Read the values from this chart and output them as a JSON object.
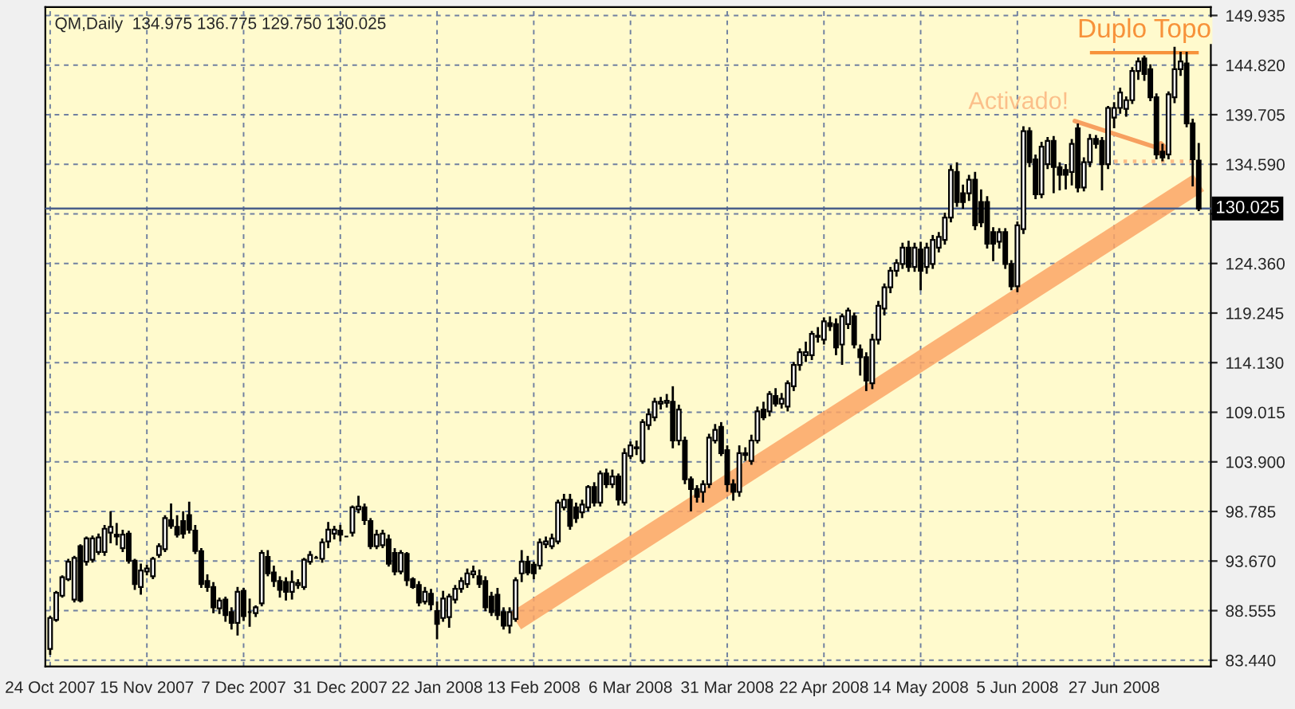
{
  "chart_data": {
    "type": "candlestick",
    "title": "QM,Daily  134.975 136.775 129.750 130.025",
    "categories": [
      "24 Oct 2007",
      null,
      null,
      null,
      null,
      null,
      null,
      null,
      null,
      null,
      null,
      null,
      null,
      null,
      null,
      null,
      "15 Nov 2007",
      null,
      null,
      null,
      null,
      null,
      null,
      null,
      null,
      null,
      null,
      null,
      null,
      null,
      null,
      null,
      "7 Dec 2007",
      null,
      null,
      null,
      null,
      null,
      null,
      null,
      null,
      null,
      null,
      null,
      null,
      null,
      null,
      null,
      "31 Dec 2007",
      null,
      null,
      null,
      null,
      null,
      null,
      null,
      null,
      null,
      null,
      null,
      null,
      null,
      null,
      null,
      "22 Jan 2008",
      null,
      null,
      null,
      null,
      null,
      null,
      null,
      null,
      null,
      null,
      null,
      null,
      null,
      null,
      null,
      "13 Feb 2008",
      null,
      null,
      null,
      null,
      null,
      null,
      null,
      null,
      null,
      null,
      null,
      null,
      null,
      null,
      null,
      "6 Mar 2008",
      null,
      null,
      null,
      null,
      null,
      null,
      null,
      null,
      null,
      null,
      null,
      null,
      null,
      null,
      null,
      "31 Mar 2008",
      null,
      null,
      null,
      null,
      null,
      null,
      null,
      null,
      null,
      null,
      null,
      null,
      null,
      null,
      null,
      "22 Apr 2008",
      null,
      null,
      null,
      null,
      null,
      null,
      null,
      null,
      null,
      null,
      null,
      null,
      null,
      null,
      null,
      "14 May 2008",
      null,
      null,
      null,
      null,
      null,
      null,
      null,
      null,
      null,
      null,
      null,
      null,
      null,
      null,
      null,
      "5 Jun 2008",
      null,
      null,
      null,
      null,
      null,
      null,
      null,
      null,
      null,
      null,
      null,
      null,
      null,
      null,
      null,
      "27 Jun 2008",
      null,
      null,
      null,
      null,
      null,
      null,
      null,
      null,
      null,
      null,
      null,
      null,
      null,
      null
    ],
    "ohlc": [
      [
        84.6,
        88.0,
        84.0,
        87.8
      ],
      [
        87.6,
        90.6,
        87.4,
        90.4
      ],
      [
        90.1,
        92.2,
        89.9,
        92.0
      ],
      [
        91.8,
        93.9,
        91.6,
        93.6
      ],
      [
        89.7,
        94.2,
        89.4,
        94.0
      ],
      [
        95.2,
        95.4,
        89.4,
        89.6
      ],
      [
        93.6,
        96.2,
        93.2,
        96.0
      ],
      [
        93.8,
        96.3,
        93.5,
        96.0
      ],
      [
        94.6,
        96.5,
        94.3,
        96.1
      ],
      [
        94.6,
        97.4,
        94.2,
        97.0
      ],
      [
        96.6,
        98.8,
        95.5,
        97.2
      ],
      [
        96.4,
        97.6,
        95.3,
        96.2
      ],
      [
        95.0,
        96.9,
        94.6,
        96.4
      ],
      [
        96.5,
        96.8,
        93.4,
        93.7
      ],
      [
        93.7,
        93.9,
        90.7,
        91.3
      ],
      [
        91.0,
        93.4,
        90.2,
        92.7
      ],
      [
        92.6,
        93.3,
        92.2,
        92.9
      ],
      [
        92.1,
        94.1,
        91.8,
        93.9
      ],
      [
        94.3,
        95.5,
        94.0,
        95.2
      ],
      [
        94.9,
        98.4,
        94.6,
        98.1
      ],
      [
        97.9,
        99.6,
        97.0,
        97.3
      ],
      [
        97.2,
        98.4,
        96.1,
        96.4
      ],
      [
        97.8,
        98.8,
        96.0,
        96.5
      ],
      [
        98.4,
        99.8,
        96.5,
        96.9
      ],
      [
        96.8,
        97.4,
        94.4,
        94.7
      ],
      [
        94.7,
        95.0,
        90.9,
        91.3
      ],
      [
        91.6,
        92.3,
        90.5,
        91.0
      ],
      [
        91.0,
        91.5,
        88.3,
        88.9
      ],
      [
        88.8,
        89.9,
        88.2,
        89.6
      ],
      [
        89.7,
        90.0,
        87.4,
        88.1
      ],
      [
        88.4,
        88.9,
        86.6,
        87.3
      ],
      [
        87.3,
        91.0,
        86.0,
        90.5
      ],
      [
        90.6,
        90.9,
        87.5,
        88.0
      ],
      [
        88.4,
        89.8,
        86.9,
        88.4
      ],
      [
        88.3,
        89.1,
        87.9,
        88.9
      ],
      [
        89.3,
        94.8,
        89.0,
        94.5
      ],
      [
        94.1,
        94.8,
        92.1,
        92.4
      ],
      [
        92.5,
        93.2,
        91.0,
        91.6
      ],
      [
        91.6,
        92.1,
        89.9,
        90.7
      ],
      [
        91.5,
        92.0,
        89.6,
        90.5
      ],
      [
        90.5,
        92.7,
        89.7,
        91.5
      ],
      [
        91.2,
        91.8,
        90.8,
        91.4
      ],
      [
        91.0,
        94.0,
        90.7,
        93.8
      ],
      [
        93.6,
        94.7,
        93.3,
        94.3
      ],
      [
        94.0,
        94.2,
        94.0,
        94.0
      ],
      [
        93.9,
        96.0,
        93.5,
        95.6
      ],
      [
        95.7,
        97.7,
        95.0,
        96.9
      ],
      [
        96.5,
        97.3,
        95.9,
        96.9
      ],
      [
        96.8,
        97.4,
        95.7,
        96.4
      ],
      [
        96.2,
        96.2,
        96.2,
        96.2
      ],
      [
        96.6,
        99.4,
        96.2,
        99.2
      ],
      [
        99.0,
        100.4,
        98.6,
        99.3
      ],
      [
        99.2,
        99.6,
        97.4,
        97.9
      ],
      [
        97.8,
        98.1,
        94.9,
        95.2
      ],
      [
        95.2,
        96.9,
        94.9,
        96.4
      ],
      [
        95.3,
        96.9,
        95.0,
        96.5
      ],
      [
        95.9,
        96.4,
        93.1,
        93.4
      ],
      [
        94.5,
        95.0,
        92.2,
        92.6
      ],
      [
        92.6,
        94.8,
        92.3,
        94.5
      ],
      [
        94.4,
        94.6,
        91.1,
        91.7
      ],
      [
        91.8,
        92.0,
        90.8,
        91.0
      ],
      [
        91.2,
        91.6,
        89.0,
        89.4
      ],
      [
        89.5,
        91.0,
        89.2,
        90.5
      ],
      [
        90.3,
        90.8,
        88.6,
        89.2
      ],
      [
        88.5,
        89.5,
        85.6,
        87.2
      ],
      [
        87.8,
        90.6,
        87.4,
        89.8
      ],
      [
        87.9,
        90.3,
        86.8,
        90.0
      ],
      [
        89.7,
        91.2,
        89.3,
        90.8
      ],
      [
        90.8,
        92.0,
        90.4,
        91.6
      ],
      [
        91.3,
        92.9,
        90.9,
        92.4
      ],
      [
        92.3,
        93.2,
        91.9,
        92.6
      ],
      [
        92.1,
        92.8,
        90.9,
        91.3
      ],
      [
        91.6,
        92.1,
        88.5,
        88.9
      ],
      [
        90.0,
        90.5,
        88.0,
        88.4
      ],
      [
        90.2,
        90.9,
        87.6,
        88.1
      ],
      [
        88.4,
        88.9,
        86.6,
        87.0
      ],
      [
        87.0,
        88.9,
        86.2,
        88.4
      ],
      [
        87.7,
        92.0,
        87.4,
        91.7
      ],
      [
        92.4,
        94.8,
        91.5,
        93.6
      ],
      [
        93.6,
        94.2,
        92.2,
        92.5
      ],
      [
        93.3,
        93.6,
        91.8,
        92.4
      ],
      [
        93.2,
        96.0,
        92.8,
        95.6
      ],
      [
        95.4,
        96.2,
        95.0,
        95.7
      ],
      [
        95.2,
        96.5,
        94.9,
        96.0
      ],
      [
        95.7,
        100.0,
        95.4,
        99.7
      ],
      [
        99.2,
        100.6,
        98.9,
        100.0
      ],
      [
        100.0,
        100.6,
        96.9,
        97.3
      ],
      [
        99.2,
        99.7,
        97.6,
        98.1
      ],
      [
        98.7,
        100.0,
        98.1,
        99.5
      ],
      [
        99.2,
        101.5,
        98.8,
        101.3
      ],
      [
        101.3,
        101.8,
        99.3,
        99.7
      ],
      [
        99.7,
        103.0,
        99.3,
        102.7
      ],
      [
        102.7,
        103.2,
        101.2,
        101.6
      ],
      [
        101.6,
        103.1,
        101.2,
        102.4
      ],
      [
        102.4,
        102.7,
        99.4,
        100.0
      ],
      [
        99.7,
        105.3,
        99.4,
        104.8
      ],
      [
        104.5,
        106.0,
        104.2,
        105.6
      ],
      [
        105.4,
        106.1,
        104.6,
        105.3
      ],
      [
        104.0,
        108.3,
        103.7,
        108.0
      ],
      [
        107.7,
        109.4,
        107.2,
        108.8
      ],
      [
        108.5,
        110.5,
        108.1,
        110.1
      ],
      [
        109.9,
        110.6,
        109.3,
        110.1
      ],
      [
        110.0,
        110.9,
        109.5,
        110.2
      ],
      [
        110.1,
        111.7,
        105.3,
        106.1
      ],
      [
        106.1,
        109.8,
        105.6,
        109.3
      ],
      [
        106.1,
        106.5,
        101.6,
        102.1
      ],
      [
        102.1,
        102.4,
        98.8,
        101.1
      ],
      [
        101.1,
        101.5,
        99.7,
        100.3
      ],
      [
        100.8,
        102.0,
        99.7,
        101.6
      ],
      [
        101.6,
        106.8,
        101.2,
        106.4
      ],
      [
        106.1,
        107.8,
        105.8,
        107.2
      ],
      [
        107.5,
        108.0,
        104.5,
        104.8
      ],
      [
        105.1,
        105.6,
        100.8,
        101.6
      ],
      [
        101.6,
        102.1,
        99.9,
        100.8
      ],
      [
        100.8,
        105.6,
        100.3,
        104.8
      ],
      [
        104.8,
        105.4,
        104.0,
        104.6
      ],
      [
        104.0,
        106.7,
        103.6,
        106.1
      ],
      [
        106.1,
        109.6,
        105.8,
        109.1
      ],
      [
        109.3,
        110.1,
        108.2,
        108.5
      ],
      [
        109.1,
        111.2,
        108.6,
        110.9
      ],
      [
        110.7,
        111.5,
        109.6,
        109.9
      ],
      [
        109.9,
        111.0,
        109.4,
        110.4
      ],
      [
        109.6,
        112.3,
        109.1,
        112.0
      ],
      [
        111.7,
        114.2,
        111.2,
        113.9
      ],
      [
        113.9,
        115.6,
        113.3,
        115.2
      ],
      [
        114.9,
        116.3,
        114.2,
        115.2
      ],
      [
        114.9,
        117.4,
        114.4,
        117.1
      ],
      [
        116.8,
        117.8,
        116.2,
        116.9
      ],
      [
        116.5,
        118.8,
        116.0,
        118.4
      ],
      [
        118.2,
        118.9,
        117.4,
        117.9
      ],
      [
        118.1,
        118.7,
        114.9,
        115.7
      ],
      [
        116.0,
        119.2,
        113.9,
        118.9
      ],
      [
        118.1,
        119.8,
        117.6,
        119.5
      ],
      [
        118.9,
        119.3,
        115.6,
        116.0
      ],
      [
        115.5,
        116.0,
        112.8,
        114.7
      ],
      [
        114.7,
        115.2,
        111.2,
        112.3
      ],
      [
        112.0,
        117.1,
        111.4,
        116.5
      ],
      [
        116.5,
        120.5,
        116.0,
        120.0
      ],
      [
        119.7,
        122.3,
        119.0,
        121.9
      ],
      [
        121.9,
        124.0,
        121.3,
        123.6
      ],
      [
        123.6,
        124.8,
        123.0,
        124.4
      ],
      [
        124.3,
        126.5,
        123.8,
        126.0
      ],
      [
        126.0,
        126.7,
        123.5,
        124.0
      ],
      [
        124.0,
        126.5,
        123.5,
        126.0
      ],
      [
        125.8,
        126.6,
        121.6,
        123.6
      ],
      [
        124.0,
        126.5,
        123.3,
        126.0
      ],
      [
        124.3,
        127.3,
        123.8,
        126.8
      ],
      [
        126.0,
        127.6,
        125.5,
        127.1
      ],
      [
        126.8,
        129.6,
        126.3,
        129.1
      ],
      [
        129.1,
        134.5,
        128.6,
        134.0
      ],
      [
        133.8,
        134.8,
        130.2,
        130.7
      ],
      [
        131.6,
        132.5,
        130.0,
        130.7
      ],
      [
        131.6,
        133.5,
        130.8,
        133.0
      ],
      [
        133.0,
        133.8,
        127.8,
        128.3
      ],
      [
        130.7,
        132.0,
        128.1,
        128.6
      ],
      [
        130.7,
        131.3,
        125.9,
        126.4
      ],
      [
        127.6,
        128.1,
        124.6,
        126.4
      ],
      [
        126.6,
        128.0,
        125.9,
        127.6
      ],
      [
        127.6,
        128.0,
        123.8,
        124.3
      ],
      [
        124.3,
        124.7,
        121.6,
        122.0
      ],
      [
        122.0,
        128.7,
        121.4,
        128.3
      ],
      [
        127.9,
        138.5,
        127.4,
        138.0
      ],
      [
        138.0,
        138.4,
        134.3,
        134.8
      ],
      [
        135.1,
        135.6,
        131.0,
        131.5
      ],
      [
        131.5,
        136.9,
        131.1,
        136.4
      ],
      [
        134.6,
        137.4,
        134.1,
        137.0
      ],
      [
        137.0,
        137.5,
        131.6,
        134.3
      ],
      [
        134.3,
        134.8,
        131.9,
        133.5
      ],
      [
        134.0,
        134.6,
        132.0,
        133.5
      ],
      [
        133.8,
        137.2,
        132.4,
        136.7
      ],
      [
        138.3,
        138.8,
        131.7,
        132.2
      ],
      [
        132.2,
        135.3,
        131.8,
        134.8
      ],
      [
        134.8,
        137.7,
        134.3,
        137.2
      ],
      [
        137.2,
        137.6,
        136.2,
        136.7
      ],
      [
        137.0,
        137.4,
        131.9,
        134.6
      ],
      [
        134.6,
        140.6,
        134.1,
        140.4
      ],
      [
        139.4,
        141.0,
        138.3,
        140.4
      ],
      [
        140.4,
        142.5,
        139.8,
        142.0
      ],
      [
        140.3,
        141.6,
        139.5,
        141.2
      ],
      [
        141.2,
        144.6,
        140.8,
        144.2
      ],
      [
        144.2,
        145.6,
        143.3,
        145.2
      ],
      [
        145.5,
        145.8,
        143.2,
        143.9
      ],
      [
        144.4,
        144.9,
        141.1,
        141.5
      ],
      [
        141.5,
        141.9,
        135.1,
        135.6
      ],
      [
        135.9,
        136.7,
        134.9,
        135.3
      ],
      [
        135.6,
        142.1,
        135.1,
        141.8
      ],
      [
        141.5,
        146.7,
        140.9,
        144.4
      ],
      [
        144.4,
        146.2,
        143.7,
        145.2
      ],
      [
        145.0,
        146.2,
        138.4,
        138.8
      ],
      [
        138.8,
        139.3,
        132.3,
        135.1
      ],
      [
        134.975,
        136.775,
        129.75,
        130.025
      ]
    ],
    "series": [
      {
        "type": "line",
        "color": "#fba465",
        "line_style": "solid",
        "values": [
          null,
          null,
          null,
          null,
          null,
          null,
          null,
          null,
          null,
          null,
          null,
          null,
          null,
          null,
          null,
          null,
          null,
          null,
          null,
          null,
          null,
          null,
          null,
          null,
          null,
          null,
          null,
          null,
          null,
          null,
          null,
          null,
          null,
          null,
          null,
          null,
          null,
          null,
          null,
          null,
          null,
          null,
          null,
          null,
          null,
          null,
          null,
          null,
          null,
          null,
          null,
          null,
          null,
          null,
          null,
          null,
          null,
          null,
          null,
          null,
          null,
          null,
          null,
          null,
          null,
          null,
          null,
          null,
          null,
          null,
          null,
          null,
          null,
          null,
          null,
          null,
          null,
          87.5,
          null,
          null,
          null,
          null,
          null,
          null,
          null,
          null,
          null,
          null,
          null,
          null,
          null,
          null,
          null,
          null,
          null,
          null,
          null,
          null,
          null,
          null,
          null,
          null,
          null,
          null,
          null,
          null,
          null,
          null,
          null,
          null,
          null,
          null,
          null,
          null,
          null,
          null,
          null,
          null,
          null,
          null,
          null,
          null,
          null,
          null,
          null,
          null,
          null,
          null,
          null,
          null,
          null,
          null,
          null,
          null,
          null,
          null,
          null,
          null,
          null,
          null,
          null,
          null,
          null,
          null,
          null,
          null,
          null,
          null,
          null,
          null,
          null,
          null,
          null,
          null,
          null,
          null,
          null,
          null,
          null,
          null,
          null,
          null,
          null,
          null,
          null,
          null,
          null,
          null,
          null,
          null,
          null,
          null,
          null,
          null,
          null,
          null,
          null,
          null,
          null,
          null,
          null,
          null,
          null,
          null,
          null,
          null,
          null,
          null,
          null,
          null,
          132.7
        ]
      },
      {
        "type": "line",
        "name": "Duplo Topo",
        "color": "#f7923a",
        "line_style": "solid",
        "values": [
          null,
          null,
          null,
          null,
          null,
          null,
          null,
          null,
          null,
          null,
          null,
          null,
          null,
          null,
          null,
          null,
          null,
          null,
          null,
          null,
          null,
          null,
          null,
          null,
          null,
          null,
          null,
          null,
          null,
          null,
          null,
          null,
          null,
          null,
          null,
          null,
          null,
          null,
          null,
          null,
          null,
          null,
          null,
          null,
          null,
          null,
          null,
          null,
          null,
          null,
          null,
          null,
          null,
          null,
          null,
          null,
          null,
          null,
          null,
          null,
          null,
          null,
          null,
          null,
          null,
          null,
          null,
          null,
          null,
          null,
          null,
          null,
          null,
          null,
          null,
          null,
          null,
          null,
          null,
          null,
          null,
          null,
          null,
          null,
          null,
          null,
          null,
          null,
          null,
          null,
          null,
          null,
          null,
          null,
          null,
          null,
          null,
          null,
          null,
          null,
          null,
          null,
          null,
          null,
          null,
          null,
          null,
          null,
          null,
          null,
          null,
          null,
          null,
          null,
          null,
          null,
          null,
          null,
          null,
          null,
          null,
          null,
          null,
          null,
          null,
          null,
          null,
          null,
          null,
          null,
          null,
          null,
          null,
          null,
          null,
          null,
          null,
          null,
          null,
          null,
          null,
          null,
          null,
          null,
          null,
          null,
          null,
          null,
          null,
          null,
          null,
          null,
          null,
          null,
          null,
          null,
          null,
          null,
          null,
          null,
          null,
          null,
          null,
          null,
          null,
          null,
          null,
          null,
          null,
          null,
          null,
          null,
          146.1,
          146.1,
          146.1,
          146.1,
          146.1,
          146.1,
          146.1,
          146.1,
          146.1,
          146.1,
          146.1,
          146.1,
          146.1,
          146.1,
          146.1,
          146.1,
          146.1,
          146.1,
          146.1
        ]
      },
      {
        "type": "line",
        "color": "#fcbd86",
        "line_style": "dotted",
        "values": [
          null,
          null,
          null,
          null,
          null,
          null,
          null,
          null,
          null,
          null,
          null,
          null,
          null,
          null,
          null,
          null,
          null,
          null,
          null,
          null,
          null,
          null,
          null,
          null,
          null,
          null,
          null,
          null,
          null,
          null,
          null,
          null,
          null,
          null,
          null,
          null,
          null,
          null,
          null,
          null,
          null,
          null,
          null,
          null,
          null,
          null,
          null,
          null,
          null,
          null,
          null,
          null,
          null,
          null,
          null,
          null,
          null,
          null,
          null,
          null,
          null,
          null,
          null,
          null,
          null,
          null,
          null,
          null,
          null,
          null,
          null,
          null,
          null,
          null,
          null,
          null,
          null,
          null,
          null,
          null,
          null,
          null,
          null,
          null,
          null,
          null,
          null,
          null,
          null,
          null,
          null,
          null,
          null,
          null,
          null,
          null,
          null,
          null,
          null,
          null,
          null,
          null,
          null,
          null,
          null,
          null,
          null,
          null,
          null,
          null,
          null,
          null,
          null,
          null,
          null,
          null,
          null,
          null,
          null,
          null,
          null,
          null,
          null,
          null,
          null,
          null,
          null,
          null,
          null,
          null,
          null,
          null,
          null,
          null,
          null,
          null,
          null,
          null,
          null,
          null,
          null,
          null,
          null,
          null,
          null,
          null,
          null,
          null,
          null,
          null,
          null,
          null,
          null,
          null,
          null,
          null,
          null,
          null,
          null,
          null,
          null,
          null,
          null,
          null,
          null,
          null,
          null,
          null,
          null,
          null,
          null,
          null,
          null,
          null,
          null,
          null,
          134.9,
          134.9,
          134.9,
          134.9,
          134.9,
          134.9,
          134.9,
          134.9,
          134.9,
          134.9,
          134.9,
          134.9,
          134.9,
          134.9,
          null
        ]
      }
    ],
    "ylim": [
      82.8,
      150.8
    ],
    "yticks": [
      {
        "value": 83.44,
        "label": "83.440"
      },
      {
        "value": 88.555,
        "label": "88.555"
      },
      {
        "value": 93.67,
        "label": "93.670"
      },
      {
        "value": 98.785,
        "label": "98.785"
      },
      {
        "value": 103.9,
        "label": "103.900"
      },
      {
        "value": 109.015,
        "label": "109.015"
      },
      {
        "value": 114.13,
        "label": "114.130"
      },
      {
        "value": 119.245,
        "label": "119.245"
      },
      {
        "value": 124.36,
        "label": "124.360"
      },
      {
        "value": 129.475,
        "label": null
      },
      {
        "value": 134.59,
        "label": "134.590"
      },
      {
        "value": 139.705,
        "label": "139.705"
      },
      {
        "value": 144.82,
        "label": "144.820"
      },
      {
        "value": 149.935,
        "label": "149.935"
      }
    ],
    "ref_lines": [
      {
        "axis": "y",
        "value": 130.025,
        "label": "130.025",
        "color": "#4a5f8a"
      }
    ],
    "annotations": [
      {
        "text": "Activado!",
        "y": 135.6
      }
    ],
    "grid": true,
    "legend": false
  }
}
